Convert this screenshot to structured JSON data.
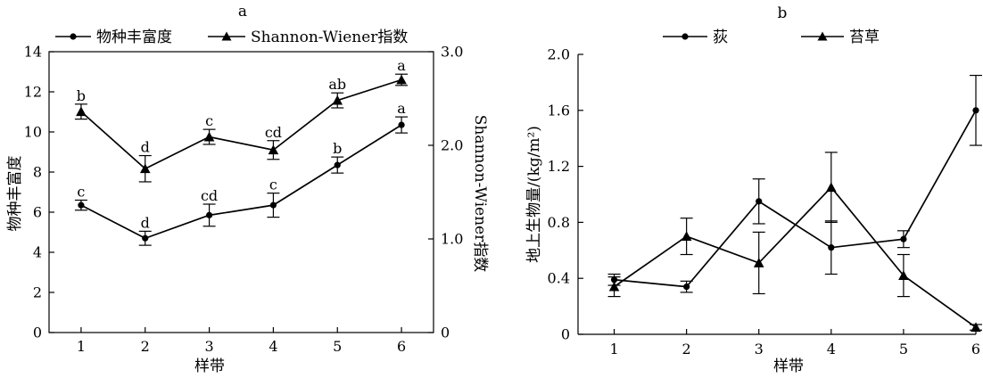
{
  "chart_data": [
    {
      "panel_label": "a",
      "type": "line",
      "x": [
        1,
        2,
        3,
        4,
        5,
        6
      ],
      "xlabel": "样带",
      "ylabel_left": "物种丰富度",
      "ylabel_right": "Shannon-Wiener指数",
      "ylim_left": [
        0,
        14
      ],
      "yticks_left": [
        0,
        2,
        4,
        6,
        8,
        10,
        12,
        14
      ],
      "ylim_right": [
        0,
        3.0
      ],
      "yticks_right": [
        "0",
        "1.0",
        "2.0",
        "3.0"
      ],
      "legend": "top",
      "series": [
        {
          "name": "物种丰富度",
          "axis": "left",
          "marker": "circle",
          "values": [
            6.35,
            4.7,
            5.85,
            6.35,
            8.35,
            10.35
          ],
          "errors": [
            0.25,
            0.35,
            0.55,
            0.6,
            0.4,
            0.4
          ],
          "letters": [
            "c",
            "d",
            "cd",
            "c",
            "b",
            "a"
          ]
        },
        {
          "name": "Shannon-Wiener指数",
          "axis": "right",
          "marker": "triangle",
          "values": [
            2.36,
            1.75,
            2.09,
            1.95,
            2.48,
            2.7
          ],
          "errors": [
            0.08,
            0.14,
            0.08,
            0.1,
            0.08,
            0.06
          ],
          "letters": [
            "b",
            "d",
            "c",
            "cd",
            "ab",
            "a"
          ]
        }
      ]
    },
    {
      "panel_label": "b",
      "type": "line",
      "x": [
        1,
        2,
        3,
        4,
        5,
        6
      ],
      "xlabel": "样带",
      "ylabel": "地上生物量/(kg/m²)",
      "ylim": [
        0,
        2.0
      ],
      "yticks": [
        "0",
        "0.4",
        "0.8",
        "1.2",
        "1.6",
        "2.0"
      ],
      "legend": "top",
      "series": [
        {
          "name": "荻",
          "marker": "circle",
          "values": [
            0.39,
            0.34,
            0.95,
            0.62,
            0.68,
            1.6
          ],
          "errors": [
            0.04,
            0.04,
            0.16,
            0.19,
            0.06,
            0.25
          ]
        },
        {
          "name": "苔草",
          "marker": "triangle",
          "values": [
            0.34,
            0.7,
            0.51,
            1.05,
            0.42,
            0.05
          ],
          "errors": [
            0.07,
            0.13,
            0.22,
            0.25,
            0.15,
            0.02
          ]
        }
      ]
    }
  ]
}
